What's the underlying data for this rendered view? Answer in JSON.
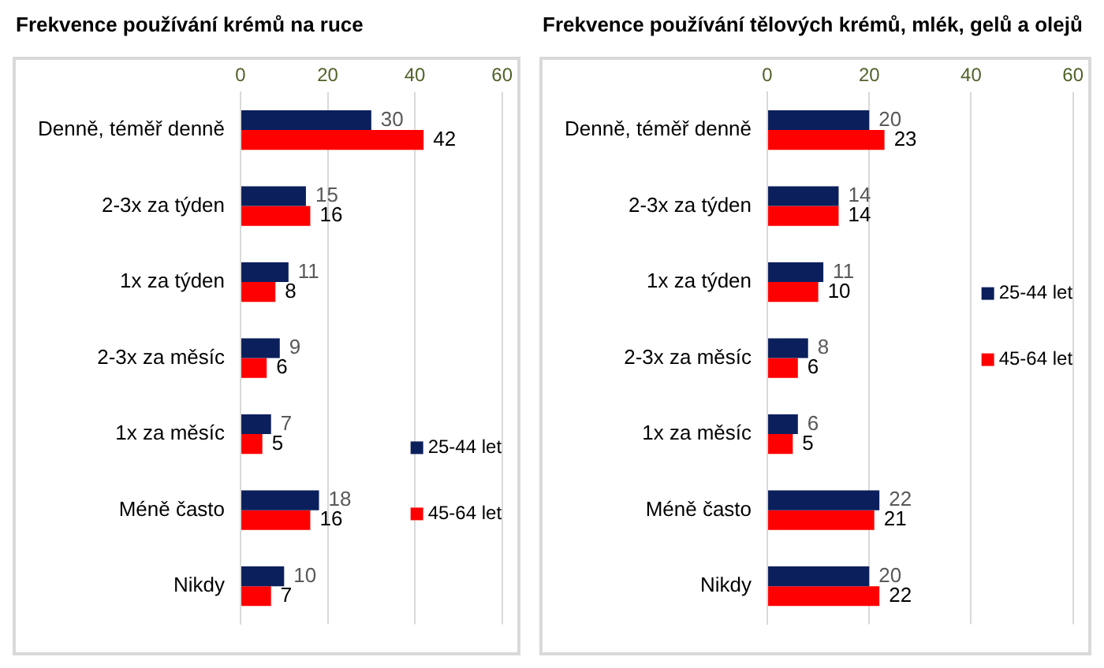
{
  "chart_data": [
    {
      "type": "bar",
      "title": "Frekvence používání krémů na ruce",
      "orientation": "horizontal",
      "categories": [
        "Denně, téměř denně",
        "2-3x za týden",
        "1x za týden",
        "2-3x za měsíc",
        "1x za měsíc",
        "Méně často",
        "Nikdy"
      ],
      "series": [
        {
          "name": "25-44 let",
          "color": "#0b1f5c",
          "values": [
            30,
            15,
            11,
            9,
            7,
            18,
            10
          ]
        },
        {
          "name": "45-64 let",
          "color": "#ff0000",
          "values": [
            42,
            16,
            8,
            6,
            5,
            16,
            7
          ]
        }
      ],
      "xlim": [
        0,
        60
      ],
      "xticks": [
        0,
        20,
        40,
        60
      ],
      "grid": "x",
      "legend": "bottom right",
      "data_labels": true
    },
    {
      "type": "bar",
      "title": "Frekvence používání tělových krémů, mlék, gelů a olejů",
      "orientation": "horizontal",
      "categories": [
        "Denně, téměř denně",
        "2-3x za týden",
        "1x za týden",
        "2-3x za měsíc",
        "1x za měsíc",
        "Méně často",
        "Nikdy"
      ],
      "series": [
        {
          "name": "25-44 let",
          "color": "#0b1f5c",
          "values": [
            20,
            14,
            11,
            8,
            6,
            22,
            20
          ]
        },
        {
          "name": "45-64 let",
          "color": "#ff0000",
          "values": [
            23,
            14,
            10,
            6,
            5,
            21,
            22
          ]
        }
      ],
      "xlim": [
        0,
        60
      ],
      "xticks": [
        0,
        20,
        40,
        60
      ],
      "grid": "x",
      "legend": "right",
      "data_labels": true
    }
  ]
}
